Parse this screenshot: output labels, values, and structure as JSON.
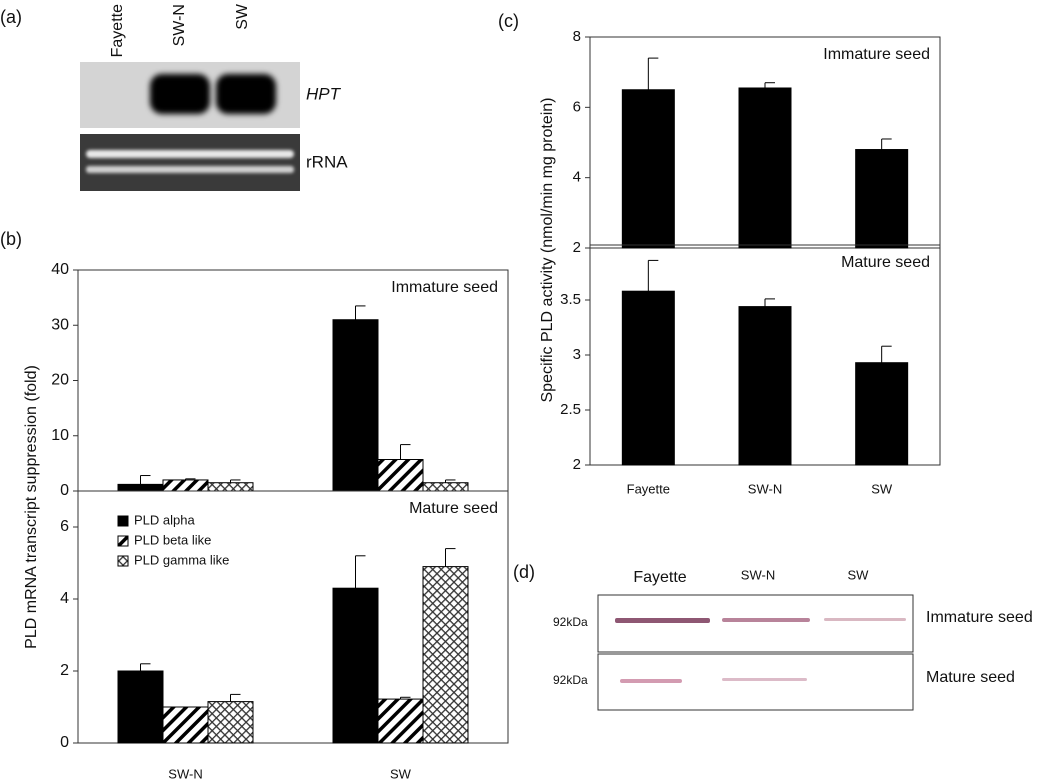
{
  "panel_a": {
    "label": "(a)",
    "lanes": [
      "Fayette",
      "SW-N",
      "SW"
    ],
    "bands": [
      "HPT",
      "rRNA"
    ]
  },
  "chart_data": [
    {
      "type": "bar",
      "panel": "(b)",
      "ylabel": "PLD mRNA transcript suppression (fold)",
      "annotation": "Immature seed",
      "ylim": [
        0,
        40
      ],
      "yticks": [
        0,
        10,
        20,
        30,
        40
      ],
      "series": [
        {
          "color": "#000000",
          "pattern": "solid",
          "values": [
            1.2,
            31
          ],
          "errors": [
            1.6,
            2.5
          ]
        },
        {
          "color": "#000000",
          "pattern": "diagonal",
          "values": [
            2,
            5.7
          ],
          "errors": [
            0.2,
            2.7
          ]
        },
        {
          "color": "#000000",
          "pattern": "crosshatch",
          "values": [
            1.5,
            1.5
          ],
          "errors": [
            0.5,
            0.5
          ]
        }
      ]
    },
    {
      "type": "bar",
      "annotation": "Mature seed",
      "categories": [
        "SW-N",
        "SW"
      ],
      "ylim": [
        0,
        7
      ],
      "yticks": [
        0,
        2,
        4,
        6
      ],
      "legend": "upper left",
      "series": [
        {
          "name": "PLD alpha",
          "color": "#000000",
          "pattern": "solid",
          "values": [
            2,
            4.3
          ],
          "errors": [
            0.2,
            0.9
          ]
        },
        {
          "name": "PLD beta like",
          "color": "#000000",
          "pattern": "diagonal",
          "values": [
            1,
            1.22
          ],
          "errors": [
            0,
            0.05
          ]
        },
        {
          "name": "PLD gamma like",
          "color": "#000000",
          "pattern": "crosshatch",
          "values": [
            1.15,
            4.9
          ],
          "errors": [
            0.2,
            0.5
          ]
        }
      ]
    },
    {
      "type": "bar",
      "panel": "(c)",
      "ylabel": "Specific PLD activity (nmol/min mg protein)",
      "annotation": "Immature seed",
      "ylim": [
        2,
        8
      ],
      "yticks": [
        2,
        4,
        6,
        8
      ],
      "series": [
        {
          "color": "#000000",
          "pattern": "solid",
          "values": [
            6.5,
            6.55,
            4.8
          ],
          "errors": [
            0.9,
            0.15,
            0.3
          ]
        }
      ]
    },
    {
      "type": "bar",
      "annotation": "Mature seed",
      "categories": [
        "Fayette",
        "SW-N",
        "SW"
      ],
      "ylim": [
        2,
        4
      ],
      "yticks": [
        2,
        2.5,
        3,
        3.5
      ],
      "series": [
        {
          "color": "#000000",
          "pattern": "solid",
          "values": [
            3.58,
            3.44,
            2.93
          ],
          "errors": [
            0.28,
            0.07,
            0.15
          ]
        }
      ]
    }
  ],
  "panel_d": {
    "label": "(d)",
    "lanes": [
      "Fayette",
      "SW-N",
      "SW"
    ],
    "markers": [
      "92kDa",
      "92kDa"
    ],
    "rows": [
      "Immature seed",
      "Mature seed"
    ]
  }
}
